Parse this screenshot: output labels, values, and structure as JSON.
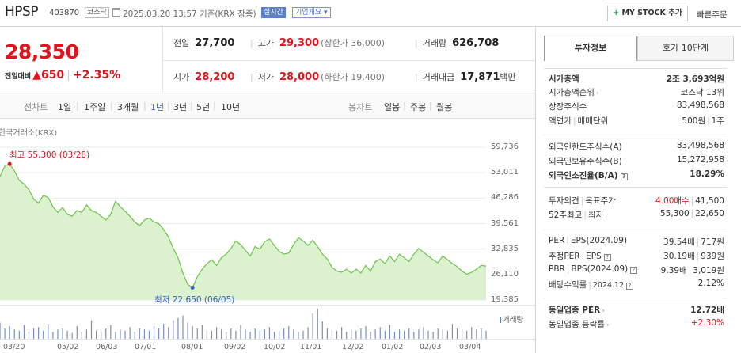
{
  "header": {
    "name": "HPSP",
    "code": "403870",
    "market": "코스닥",
    "datetime": "2025.03.20 13:57 기준(KRX 장중)",
    "live_badge": "실시간",
    "company_badge": "기업개요",
    "mystock_label": "MY STOCK 추가",
    "quick_order": "빠른주문"
  },
  "price": {
    "current": "28,350",
    "change_label": "전일대비",
    "change_value": "650",
    "change_pct": "+2.35%"
  },
  "summary": {
    "prev_label": "전일",
    "prev_value": "27,700",
    "high_label": "고가",
    "high_value": "29,300",
    "upper_limit": "(상한가 36,000)",
    "volume_label": "거래량",
    "volume_value": "626,708",
    "open_label": "시가",
    "open_value": "28,200",
    "low_label": "저가",
    "low_value": "28,000",
    "lower_limit": "(하한가 19,400)",
    "amount_label": "거래대금",
    "amount_value": "17,871",
    "amount_unit": "백만"
  },
  "tabs": {
    "line_chart": "선차트",
    "periods": [
      "1일",
      "1주일",
      "3개월",
      "1년",
      "3년",
      "5년",
      "10년"
    ],
    "active_period": "1년",
    "candle_chart": "봉차트",
    "candle_periods": [
      "일봉",
      "주봉",
      "월봉"
    ]
  },
  "chart_data": {
    "type": "area",
    "source_label": "한국거래소(KRX)",
    "x_labels": [
      "03/20",
      "05/02",
      "06/03",
      "07/01",
      "08/01",
      "09/02",
      "10/02",
      "11/01",
      "12/02",
      "01/02",
      "02/03",
      "03/04"
    ],
    "y_ticks": [
      "59,736",
      "53,011",
      "46,286",
      "39,561",
      "32,835",
      "26,110",
      "19,385"
    ],
    "ylim": [
      19385,
      59736
    ],
    "high_label": "최고 55,300 (03/28)",
    "low_label": "최저 22,650 (06/05)",
    "volume_legend": "거래량",
    "series": [
      {
        "values": [
          52000,
          54800,
          55300,
          53500,
          51000,
          50000,
          48500,
          46000,
          45000,
          47000,
          46500,
          44000,
          42500,
          43800,
          42000,
          41500,
          43000,
          42500,
          44500,
          43000,
          42500,
          41500,
          40500,
          42000,
          45500,
          44000,
          42800,
          41500,
          40000,
          39000,
          40500,
          41000,
          40000,
          39500,
          38000,
          36000,
          33000,
          30500,
          26500,
          23500,
          22650,
          25500,
          27500,
          29000,
          30000,
          28500,
          30500,
          31500,
          33000,
          35000,
          34000,
          32500,
          31000,
          33500,
          32800,
          34800,
          35500,
          33800,
          32200,
          31500,
          31800,
          34000,
          35800,
          35000,
          33800,
          35200,
          33500,
          31500,
          30200,
          28000,
          27000,
          26700,
          27500,
          26500,
          27500,
          26500,
          28500,
          27000,
          29500,
          30200,
          29000,
          31000,
          29500,
          31500,
          30500,
          29500,
          31500,
          33000,
          32000,
          31000,
          30000,
          29200,
          31000,
          30000,
          29000,
          28200,
          27000,
          26200,
          26700,
          27500,
          28500,
          28350
        ]
      }
    ],
    "volume": [
      14,
      9,
      11,
      8,
      7,
      12,
      6,
      9,
      10,
      7,
      13,
      6,
      8,
      9,
      7,
      5,
      11,
      6,
      8,
      16,
      7,
      6,
      9,
      12,
      6,
      8,
      7,
      10,
      6,
      9,
      8,
      7,
      11,
      9,
      13,
      10,
      16,
      18,
      20,
      14,
      11,
      9,
      12,
      8,
      7,
      10,
      8,
      6,
      9,
      7,
      12,
      8,
      6,
      9,
      7,
      8,
      10,
      6,
      7,
      9,
      11,
      8,
      6,
      7,
      10,
      22,
      26,
      15,
      9,
      8,
      7,
      10,
      6,
      8,
      7,
      9,
      11,
      6,
      8,
      10,
      7,
      12,
      6,
      8,
      7,
      9,
      6,
      8,
      10,
      7,
      6,
      9,
      8,
      7,
      13,
      9,
      8,
      7,
      10,
      8,
      9,
      7
    ]
  },
  "right_panel": {
    "tab_active": "투자정보",
    "tab_other": "호가 10단계",
    "market_cap_label": "시가총액",
    "market_cap_value": "2조 3,693억원",
    "cap_rank_label": "시가총액순위",
    "cap_rank_value": "코스닥 13위",
    "shares_label": "상장주식수",
    "shares_value": "83,498,568",
    "par_label": "액면가",
    "trade_unit_label": "매매단위",
    "par_value": "500원",
    "trade_unit_value": "1주",
    "foreign_limit_label": "외국인한도주식수(A)",
    "foreign_limit_value": "83,498,568",
    "foreign_hold_label": "외국인보유주식수(B)",
    "foreign_hold_value": "15,272,958",
    "foreign_ratio_label": "외국인소진율(B/A)",
    "foreign_ratio_value": "18.29%",
    "opinion_label": "투자의견",
    "target_label": "목표주가",
    "opinion_value": "4.00매수",
    "target_value": "41,500",
    "wk52_label": "52주최고",
    "wk52_low_label": "최저",
    "wk52_high": "55,300",
    "wk52_low": "22,650",
    "per_label": "PER",
    "eps_label": "EPS(2024.09)",
    "per_value": "39.54배",
    "eps_value": "717원",
    "est_per_label": "추정PER",
    "est_eps_label": "EPS",
    "est_per_value": "30.19배",
    "est_eps_value": "939원",
    "pbr_label": "PBR",
    "bps_label": "BPS(2024.09)",
    "pbr_value": "9.39배",
    "bps_value": "3,019원",
    "div_label": "배당수익률",
    "div_date": "2024.12",
    "div_value": "2.12%",
    "ind_per_label": "동일업종 PER",
    "ind_per_value": "12.72배",
    "ind_rate_label": "동일업종 등락률",
    "ind_rate_value": "+2.30%",
    "info_glyph": "?",
    "chevron": "›"
  }
}
